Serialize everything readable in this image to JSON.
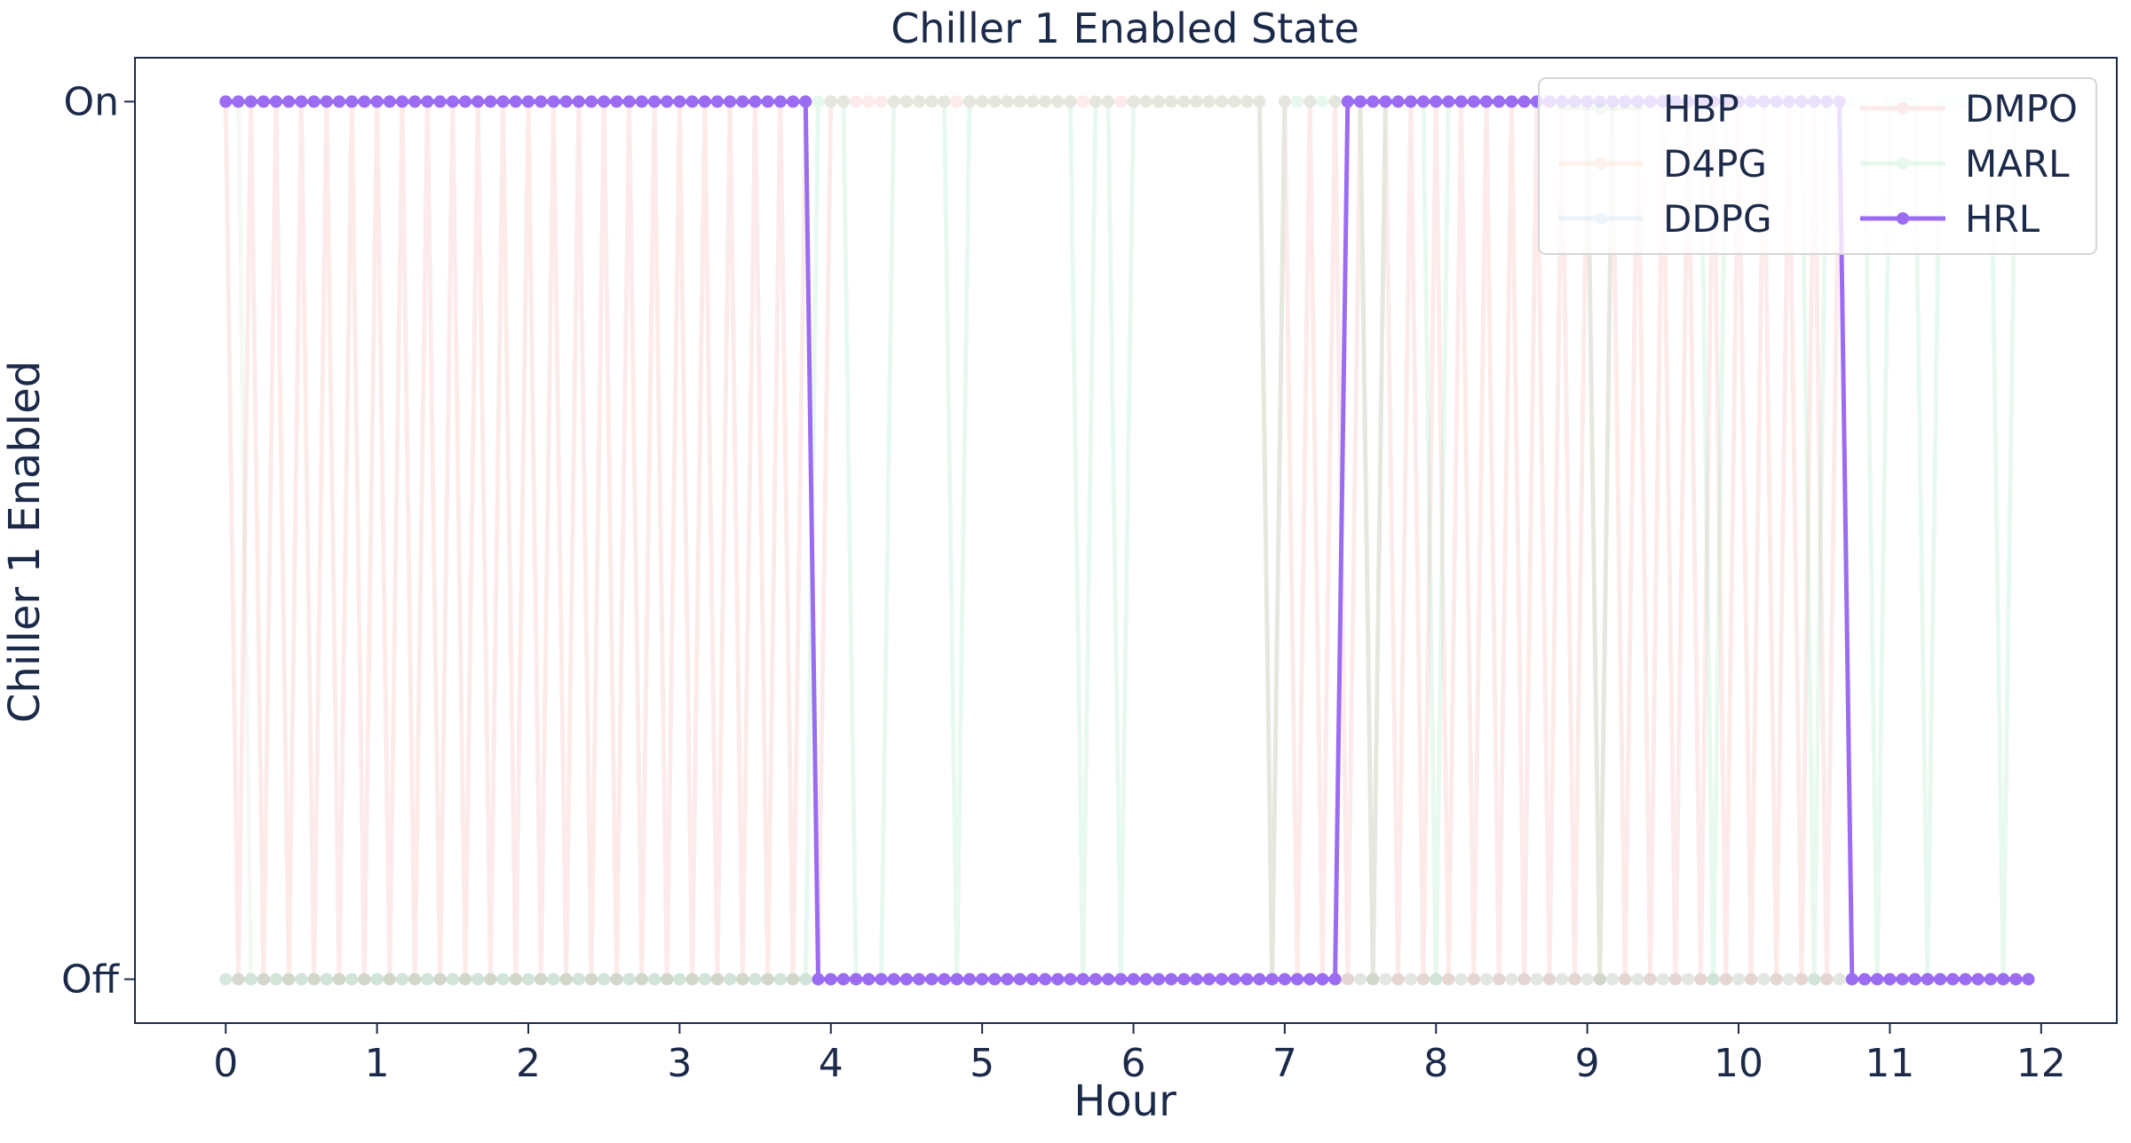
{
  "chart_data": {
    "type": "line",
    "title": "Chiller 1 Enabled State",
    "xlabel": "Hour",
    "ylabel": "Chiller 1 Enabled",
    "xlim": [
      -0.6,
      12.5
    ],
    "ylim": [
      -0.05,
      1.05
    ],
    "x_ticks": [
      0,
      1,
      2,
      3,
      4,
      5,
      6,
      7,
      8,
      9,
      10,
      11,
      12
    ],
    "x_tick_labels": [
      "0",
      "1",
      "2",
      "3",
      "4",
      "5",
      "6",
      "7",
      "8",
      "9",
      "10",
      "11",
      "12"
    ],
    "y_ticks": [
      0,
      1
    ],
    "y_tick_labels": [
      "Off",
      "On"
    ],
    "grid": false,
    "legend_position": "top-right",
    "legend_columns": 2,
    "sampling": {
      "start_hour": 0,
      "step_hour": 0.08333,
      "count": 144
    },
    "series": [
      {
        "name": "HBP",
        "color": "#a8d8a0",
        "alpha": 0.12,
        "segments": [
          [
            0,
            1,
            1
          ]
        ]
      },
      {
        "name": "D4PG",
        "color": "#f4a36b",
        "alpha": 0.12,
        "segments": [
          [
            0,
            143,
            0
          ]
        ]
      },
      {
        "name": "DDPG",
        "color": "#6fb4e6",
        "alpha": 0.12,
        "segments": [
          [
            0,
            143,
            0
          ]
        ]
      },
      {
        "name": "DMPO",
        "color": "#f47a7a",
        "alpha": 0.15,
        "segments": [
          [
            0,
            47,
            "alt"
          ],
          [
            48,
            82,
            1
          ],
          [
            83,
            129,
            "alt"
          ],
          [
            130,
            143,
            0
          ]
        ]
      },
      {
        "name": "MARL",
        "color": "#7fdcaa",
        "alpha": 0.18,
        "segments": [
          [
            0,
            46,
            0
          ],
          [
            47,
            49,
            1
          ],
          [
            50,
            52,
            0
          ],
          [
            53,
            57,
            1
          ],
          [
            58,
            58,
            0
          ],
          [
            59,
            67,
            1
          ],
          [
            68,
            68,
            0
          ],
          [
            69,
            70,
            1
          ],
          [
            71,
            71,
            0
          ],
          [
            72,
            82,
            1
          ],
          [
            83,
            83,
            0
          ],
          [
            84,
            90,
            1
          ],
          [
            91,
            91,
            0
          ],
          [
            92,
            95,
            1
          ],
          [
            96,
            96,
            0
          ],
          [
            97,
            108,
            1
          ],
          [
            109,
            109,
            0
          ],
          [
            110,
            117,
            1
          ],
          [
            118,
            118,
            0
          ],
          [
            119,
            125,
            1
          ],
          [
            126,
            126,
            0
          ],
          [
            127,
            130,
            1
          ],
          [
            131,
            131,
            0
          ],
          [
            132,
            134,
            1
          ],
          [
            135,
            135,
            0
          ],
          [
            136,
            140,
            1
          ],
          [
            141,
            141,
            0
          ],
          [
            142,
            143,
            1
          ]
        ]
      },
      {
        "name": "HRL",
        "color": "#9b6cf2",
        "alpha": 1.0,
        "segments": [
          [
            0,
            46,
            1
          ],
          [
            47,
            88,
            0
          ],
          [
            89,
            128,
            1
          ],
          [
            129,
            143,
            0
          ]
        ]
      }
    ]
  }
}
